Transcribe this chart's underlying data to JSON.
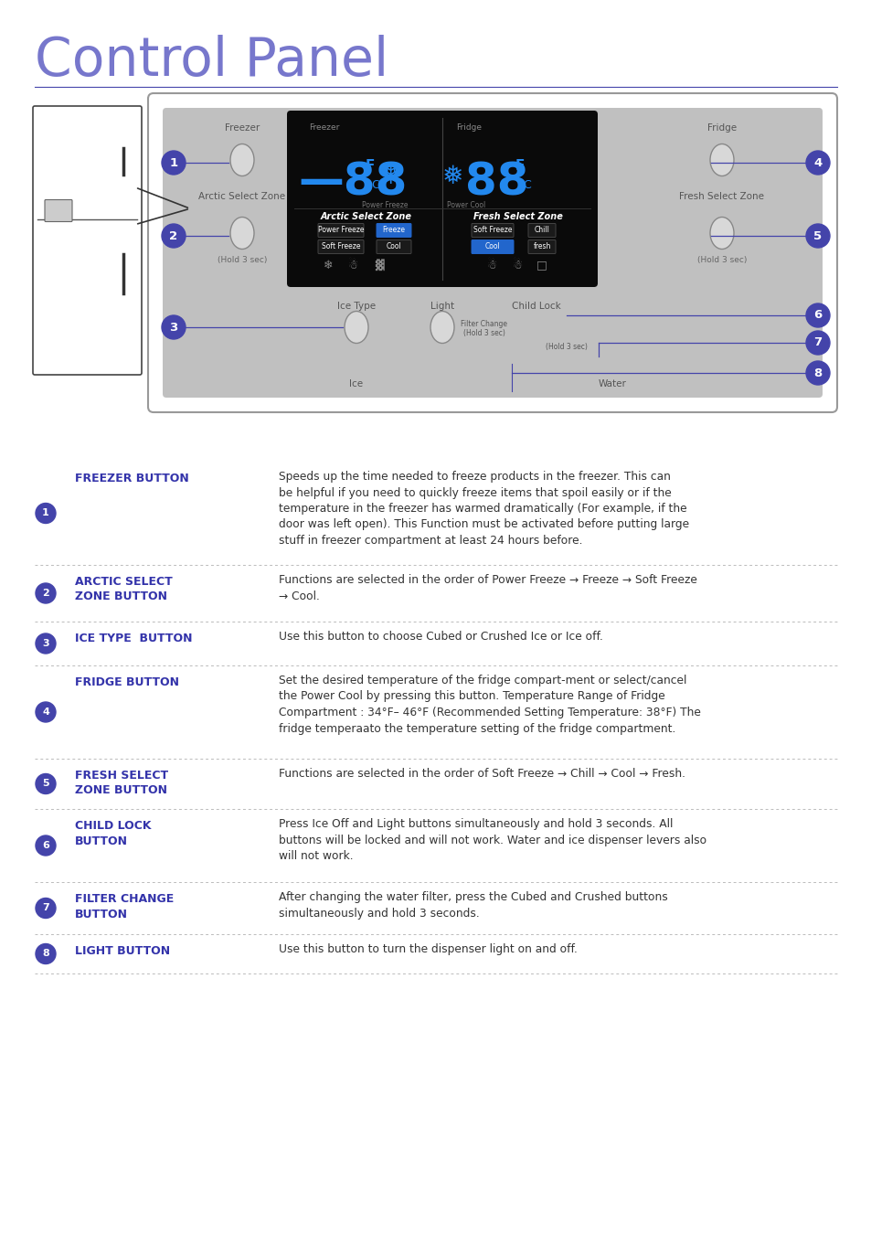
{
  "title": "Control Panel",
  "title_color": "#7777cc",
  "title_fontsize": 42,
  "background_color": "#ffffff",
  "accent_color": "#4444aa",
  "circle_color": "#4444aa",
  "circle_text_color": "#ffffff",
  "button_label_color": "#3333aa",
  "desc_text_color": "#333333",
  "separator_color": "#bbbbbb",
  "panel_bg": "#c0c0c0",
  "panel_screen_bg": "#111111",
  "items": [
    {
      "num": "1",
      "label": "FREEZER BUTTON",
      "desc": "Speeds up the time needed to freeze products in the freezer. This can\nbe helpful if you need to quickly freeze items that spoil easily or if the\ntemperature in the freezer has warmed dramatically (For example, if the\ndoor was left open). This Function must be activated before putting large\nstuff in freezer compartment at least 24 hours before."
    },
    {
      "num": "2",
      "label": "ARCTIC SELECT\nZONE BUTTON",
      "desc": "Functions are selected in the order of Power Freeze → Freeze → Soft Freeze\n→ Cool."
    },
    {
      "num": "3",
      "label": "ICE TYPE  BUTTON",
      "desc": "Use this button to choose Cubed or Crushed Ice or Ice off."
    },
    {
      "num": "4",
      "label": "FRIDGE BUTTON",
      "desc": "Set the desired temperature of the fridge compart-ment or select/cancel\nthe Power Cool by pressing this button. Temperature Range of Fridge\nCompartment : 34°F– 46°F (Recommended Setting Temperature: 38°F) The\nfridge temperaato the temperature setting of the fridge compartment."
    },
    {
      "num": "5",
      "label": "FRESH SELECT\nZONE BUTTON",
      "desc": "Functions are selected in the order of Soft Freeze → Chill → Cool → Fresh."
    },
    {
      "num": "6",
      "label": "CHILD LOCK\nBUTTON",
      "desc": "Press Ice Off and Light buttons simultaneously and hold 3 seconds. All\nbuttons will be locked and will not work. Water and ice dispenser levers also\nwill not work."
    },
    {
      "num": "7",
      "label": "FILTER CHANGE\nBUTTON",
      "desc": "After changing the water filter, press the Cubed and Crushed buttons\nsimultaneously and hold 3 seconds."
    },
    {
      "num": "8",
      "label": "LIGHT BUTTON",
      "desc": "Use this button to turn the dispenser light on and off."
    }
  ]
}
